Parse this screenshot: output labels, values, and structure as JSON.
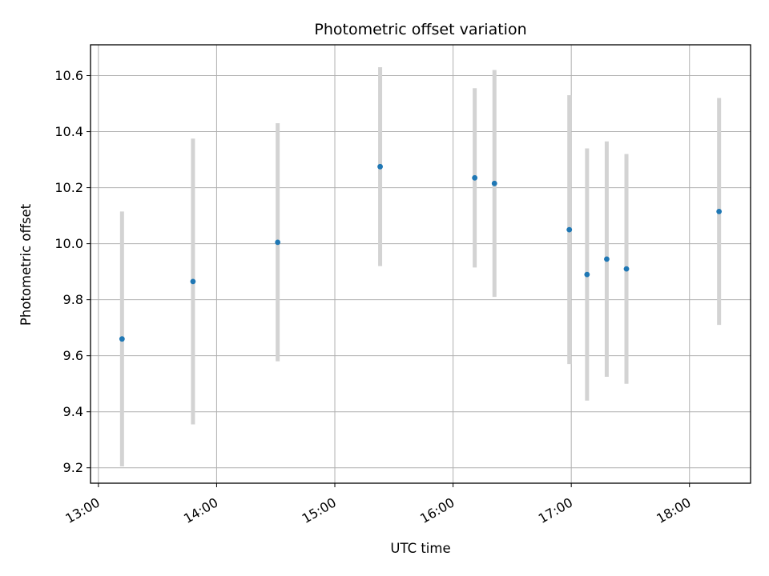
{
  "chart_data": {
    "type": "scatter",
    "title": "Photometric offset variation",
    "xlabel": "UTC time",
    "ylabel": "Photometric offset",
    "x_ticks": [
      "13:00",
      "14:00",
      "15:00",
      "16:00",
      "17:00",
      "18:00"
    ],
    "y_ticks": [
      "9.2",
      "9.4",
      "9.6",
      "9.8",
      "10.0",
      "10.2",
      "10.4",
      "10.6"
    ],
    "xlim": [
      "12:56",
      "18:31"
    ],
    "ylim": [
      9.145,
      10.71
    ],
    "grid": true,
    "colors": {
      "point": "#1f77b4",
      "errorbar": "#d3d3d3",
      "grid": "#b0b0b0"
    },
    "points": [
      {
        "x": "13:12",
        "y": 9.66,
        "yerr": 0.455
      },
      {
        "x": "13:48",
        "y": 9.865,
        "yerr": 0.51
      },
      {
        "x": "14:31",
        "y": 10.005,
        "yerr": 0.425
      },
      {
        "x": "15:23",
        "y": 10.275,
        "yerr": 0.355
      },
      {
        "x": "16:11",
        "y": 10.235,
        "yerr": 0.32
      },
      {
        "x": "16:21",
        "y": 10.215,
        "yerr": 0.405
      },
      {
        "x": "16:59",
        "y": 10.05,
        "yerr": 0.48
      },
      {
        "x": "17:08",
        "y": 9.89,
        "yerr": 0.45
      },
      {
        "x": "17:18",
        "y": 9.945,
        "yerr": 0.42
      },
      {
        "x": "17:28",
        "y": 9.91,
        "yerr": 0.41
      },
      {
        "x": "18:15",
        "y": 10.115,
        "yerr": 0.405
      }
    ]
  }
}
